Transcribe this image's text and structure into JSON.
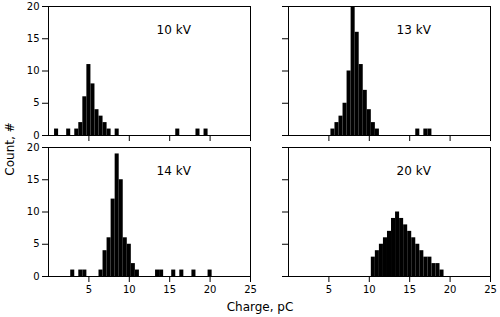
{
  "chart_data": [
    {
      "type": "bar",
      "title": "10 kV",
      "bins": [
        0.75,
        1.25,
        1.75,
        2.25,
        2.75,
        3.25,
        3.75,
        4.25,
        4.75,
        5.25,
        5.75,
        6.25,
        6.75,
        7.25,
        7.75,
        8.25,
        8.75,
        9.25,
        9.75,
        10.25,
        10.75,
        11.25,
        11.75,
        12.25,
        12.75,
        13.25,
        13.75,
        14.25,
        14.75,
        15.25,
        15.75,
        16.25,
        16.75,
        17.25,
        17.75,
        18.25,
        18.75,
        19.25,
        19.75,
        20.25,
        20.75,
        21.25,
        21.75,
        22.25
      ],
      "values": [
        1,
        0,
        0,
        1,
        0,
        1,
        2,
        6,
        11,
        8,
        4,
        3,
        2,
        1,
        0,
        1,
        0,
        0,
        0,
        0,
        0,
        0,
        0,
        0,
        0,
        0,
        0,
        0,
        0,
        0,
        1,
        0,
        0,
        0,
        0,
        1,
        0,
        1,
        0,
        0,
        0,
        0,
        0
      ],
      "color": "#000000",
      "xlim": [
        0,
        25
      ],
      "xticks": [
        5,
        10,
        15,
        20,
        25
      ],
      "ylim": [
        0,
        20
      ],
      "yticks": [
        0,
        5,
        10,
        15,
        20
      ],
      "tick_labels": "y"
    },
    {
      "type": "bar",
      "title": "13 kV",
      "bins": [
        0.75,
        1.25,
        1.75,
        2.25,
        2.75,
        3.25,
        3.75,
        4.25,
        4.75,
        5.25,
        5.75,
        6.25,
        6.75,
        7.25,
        7.75,
        8.25,
        8.75,
        9.25,
        9.75,
        10.25,
        10.75,
        11.25,
        11.75,
        12.25,
        12.75,
        13.25,
        13.75,
        14.25,
        14.75,
        15.25,
        15.75,
        16.25,
        16.75,
        17.25,
        17.75,
        18.25,
        18.75,
        19.25,
        19.75,
        20.25,
        20.75,
        21.25,
        21.75,
        22.25
      ],
      "values": [
        0,
        0,
        0,
        0,
        0,
        0,
        0,
        0,
        0,
        1,
        2,
        3,
        5,
        10,
        20,
        16,
        11,
        7,
        4,
        2,
        1,
        0,
        0,
        0,
        0,
        0,
        0,
        0,
        0,
        0,
        1,
        0,
        1,
        1,
        0,
        0,
        0,
        0,
        0,
        0,
        0,
        0,
        0
      ],
      "color": "#000000",
      "xlim": [
        0,
        25
      ],
      "xticks": [
        5,
        10,
        15,
        20,
        25
      ],
      "ylim": [
        0,
        20
      ],
      "yticks": [
        0,
        5,
        10,
        15,
        20
      ],
      "tick_labels": false
    },
    {
      "type": "bar",
      "title": "14 kV",
      "xlabel": "Charge, pC",
      "ylabel": "Count, #",
      "bins": [
        0.75,
        1.25,
        1.75,
        2.25,
        2.75,
        3.25,
        3.75,
        4.25,
        4.75,
        5.25,
        5.75,
        6.25,
        6.75,
        7.25,
        7.75,
        8.25,
        8.75,
        9.25,
        9.75,
        10.25,
        10.75,
        11.25,
        11.75,
        12.25,
        12.75,
        13.25,
        13.75,
        14.25,
        14.75,
        15.25,
        15.75,
        16.25,
        16.75,
        17.25,
        17.75,
        18.25,
        18.75,
        19.25,
        19.75,
        20.25,
        20.75,
        21.25,
        21.75,
        22.25
      ],
      "values": [
        0,
        0,
        0,
        0,
        1,
        0,
        1,
        1,
        0,
        0,
        0,
        1,
        4,
        6,
        12,
        19,
        15,
        6,
        5,
        2,
        1,
        0,
        0,
        0,
        0,
        1,
        1,
        0,
        0,
        1,
        0,
        1,
        0,
        0,
        1,
        0,
        0,
        0,
        1,
        0,
        0,
        0,
        0
      ],
      "color": "#000000",
      "xlim": [
        0,
        25
      ],
      "xticks": [
        5,
        10,
        15,
        20,
        25
      ],
      "ylim": [
        0,
        20
      ],
      "yticks": [
        0,
        5,
        10,
        15,
        20
      ],
      "tick_labels": true
    },
    {
      "type": "bar",
      "title": "20 kV",
      "bins": [
        0.75,
        1.25,
        1.75,
        2.25,
        2.75,
        3.25,
        3.75,
        4.25,
        4.75,
        5.25,
        5.75,
        6.25,
        6.75,
        7.25,
        7.75,
        8.25,
        8.75,
        9.25,
        9.75,
        10.25,
        10.75,
        11.25,
        11.75,
        12.25,
        12.75,
        13.25,
        13.75,
        14.25,
        14.75,
        15.25,
        15.75,
        16.25,
        16.75,
        17.25,
        17.75,
        18.25,
        18.75,
        19.25,
        19.75,
        20.25,
        20.75,
        21.25,
        21.75,
        22.25
      ],
      "values": [
        0,
        0,
        0,
        0,
        0,
        0,
        0,
        0,
        0,
        0,
        0,
        0,
        0,
        0,
        0,
        0,
        0,
        0,
        0,
        3,
        4,
        5,
        6,
        7,
        9,
        10,
        9,
        8,
        7,
        6,
        5,
        4,
        3,
        3,
        2,
        2,
        1,
        0,
        0,
        0,
        0,
        0,
        0
      ],
      "color": "#000000",
      "xlim": [
        0,
        25
      ],
      "xticks": [
        5,
        10,
        15,
        20,
        25
      ],
      "ylim": [
        0,
        20
      ],
      "yticks": [
        0,
        5,
        10,
        15,
        20
      ],
      "tick_labels": "x"
    }
  ]
}
